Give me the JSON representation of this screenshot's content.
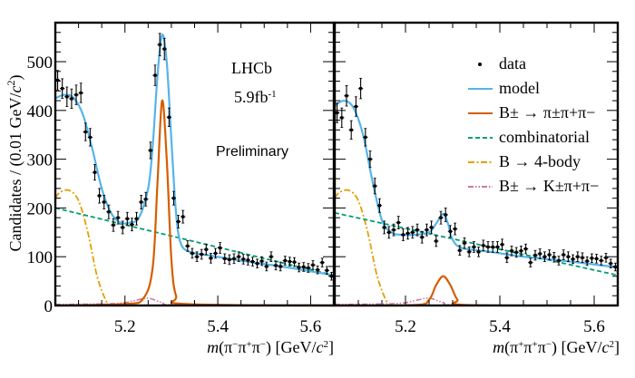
{
  "chart_data": [
    {
      "type": "scatter",
      "panel": "left",
      "xlabel": "m(π⁻π⁺π⁻) [GeV/c²]",
      "ylabel": "Candidates / (0.01 GeV/c²)",
      "xlim": [
        5.05,
        5.65
      ],
      "ylim": [
        0,
        580
      ],
      "xticks": [
        5.2,
        5.4,
        5.6
      ],
      "xtick_labels": [
        "5.2",
        "5.4",
        "5.6"
      ],
      "yticks": [
        0,
        100,
        200,
        300,
        400,
        500
      ],
      "ytick_labels": [
        "0",
        "100",
        "200",
        "300",
        "400",
        "500"
      ],
      "annotations": [
        "LHCb",
        "5.9fb",
        "-1",
        "Preliminary"
      ],
      "data": {
        "x": [
          5.055,
          5.065,
          5.075,
          5.085,
          5.095,
          5.105,
          5.115,
          5.125,
          5.135,
          5.145,
          5.155,
          5.165,
          5.175,
          5.185,
          5.195,
          5.205,
          5.215,
          5.225,
          5.235,
          5.245,
          5.255,
          5.265,
          5.275,
          5.285,
          5.295,
          5.305,
          5.315,
          5.325,
          5.335,
          5.345,
          5.355,
          5.365,
          5.375,
          5.385,
          5.395,
          5.405,
          5.415,
          5.425,
          5.435,
          5.445,
          5.455,
          5.465,
          5.475,
          5.485,
          5.495,
          5.505,
          5.515,
          5.525,
          5.535,
          5.545,
          5.555,
          5.565,
          5.575,
          5.585,
          5.595,
          5.605,
          5.615,
          5.625,
          5.635,
          5.645
        ],
        "y": [
          462,
          445,
          428,
          424,
          432,
          436,
          356,
          345,
          273,
          225,
          212,
          192,
          165,
          180,
          160,
          178,
          166,
          178,
          212,
          218,
          318,
          472,
          535,
          526,
          386,
          220,
          172,
          182,
          122,
          107,
          100,
          105,
          115,
          97,
          107,
          118,
          96,
          94,
          96,
          100,
          95,
          93,
          90,
          86,
          91,
          80,
          100,
          82,
          80,
          92,
          90,
          89,
          78,
          79,
          77,
          83,
          73,
          88,
          72,
          60
        ],
        "err": [
          20,
          20,
          20,
          20,
          20,
          20,
          18,
          18,
          16,
          15,
          14,
          14,
          13,
          13,
          13,
          13,
          13,
          13,
          14,
          14,
          17,
          21,
          23,
          22,
          19,
          14,
          13,
          13,
          11,
          10,
          10,
          10,
          11,
          10,
          10,
          11,
          10,
          10,
          10,
          10,
          10,
          10,
          9,
          9,
          9,
          9,
          10,
          9,
          9,
          9,
          9,
          9,
          9,
          9,
          9,
          9,
          8,
          9,
          8,
          8
        ]
      },
      "model": {
        "x": [
          5.05,
          5.07,
          5.09,
          5.11,
          5.13,
          5.15,
          5.17,
          5.19,
          5.21,
          5.23,
          5.25,
          5.26,
          5.27,
          5.28,
          5.29,
          5.3,
          5.31,
          5.32,
          5.34,
          5.38,
          5.45,
          5.55,
          5.65
        ],
        "y": [
          425,
          432,
          425,
          390,
          320,
          240,
          190,
          170,
          170,
          180,
          240,
          330,
          470,
          555,
          500,
          340,
          190,
          128,
          110,
          103,
          92,
          78,
          62
        ]
      },
      "signal": {
        "x": [
          5.05,
          5.2,
          5.24,
          5.26,
          5.27,
          5.28,
          5.29,
          5.3,
          5.31,
          5.33,
          5.65
        ],
        "y": [
          0,
          3,
          15,
          80,
          250,
          420,
          300,
          95,
          20,
          3,
          0
        ]
      },
      "combinatorial": {
        "x": [
          5.05,
          5.65
        ],
        "y": [
          200,
          62
        ]
      },
      "four_body": {
        "x": [
          5.05,
          5.06,
          5.08,
          5.1,
          5.12,
          5.14,
          5.16,
          5.17,
          5.2
        ],
        "y": [
          220,
          232,
          236,
          215,
          150,
          60,
          8,
          0,
          0
        ]
      },
      "kpipi": {
        "x": [
          5.05,
          5.18,
          5.22,
          5.25,
          5.28,
          5.32,
          5.65
        ],
        "y": [
          2,
          4,
          10,
          15,
          6,
          1,
          0
        ]
      }
    },
    {
      "type": "scatter",
      "panel": "right",
      "xlabel": "m(π⁺π⁺π⁻) [GeV/c²]",
      "xlim": [
        5.05,
        5.65
      ],
      "ylim": [
        0,
        580
      ],
      "xticks": [
        5.2,
        5.4,
        5.6
      ],
      "xtick_labels": [
        "5.2",
        "5.4",
        "5.6"
      ],
      "data": {
        "x": [
          5.055,
          5.065,
          5.075,
          5.085,
          5.095,
          5.105,
          5.115,
          5.125,
          5.135,
          5.145,
          5.155,
          5.165,
          5.175,
          5.185,
          5.195,
          5.205,
          5.215,
          5.225,
          5.235,
          5.245,
          5.255,
          5.265,
          5.275,
          5.285,
          5.295,
          5.305,
          5.315,
          5.325,
          5.335,
          5.345,
          5.355,
          5.365,
          5.375,
          5.385,
          5.395,
          5.405,
          5.415,
          5.425,
          5.435,
          5.445,
          5.455,
          5.465,
          5.475,
          5.485,
          5.495,
          5.505,
          5.515,
          5.525,
          5.535,
          5.545,
          5.555,
          5.565,
          5.575,
          5.585,
          5.595,
          5.605,
          5.615,
          5.625,
          5.635,
          5.645
        ],
        "y": [
          395,
          385,
          430,
          360,
          408,
          445,
          345,
          300,
          245,
          205,
          160,
          150,
          155,
          170,
          145,
          148,
          150,
          155,
          140,
          155,
          160,
          132,
          180,
          186,
          152,
          157,
          113,
          128,
          110,
          120,
          110,
          123,
          120,
          120,
          120,
          125,
          98,
          112,
          109,
          112,
          116,
          88,
          103,
          106,
          100,
          104,
          99,
          92,
          104,
          100,
          95,
          100,
          98,
          91,
          97,
          96,
          92,
          98,
          86,
          79
        ],
        "err": [
          20,
          20,
          21,
          19,
          20,
          21,
          18,
          17,
          16,
          14,
          13,
          12,
          12,
          13,
          12,
          12,
          12,
          12,
          12,
          12,
          13,
          11,
          13,
          14,
          12,
          12,
          10,
          11,
          10,
          11,
          10,
          11,
          11,
          11,
          11,
          11,
          10,
          10,
          10,
          10,
          10,
          9,
          10,
          10,
          10,
          10,
          10,
          9,
          10,
          10,
          9,
          10,
          10,
          9,
          9,
          9,
          9,
          9,
          9,
          8
        ]
      },
      "model": {
        "x": [
          5.05,
          5.07,
          5.09,
          5.11,
          5.13,
          5.15,
          5.17,
          5.19,
          5.22,
          5.25,
          5.265,
          5.28,
          5.29,
          5.3,
          5.32,
          5.38,
          5.45,
          5.55,
          5.65
        ],
        "y": [
          410,
          420,
          405,
          350,
          255,
          175,
          150,
          145,
          145,
          150,
          168,
          188,
          168,
          135,
          118,
          110,
          100,
          90,
          78
        ]
      },
      "signal": {
        "x": [
          5.05,
          5.22,
          5.25,
          5.265,
          5.28,
          5.295,
          5.31,
          5.33,
          5.65
        ],
        "y": [
          0,
          1,
          12,
          42,
          60,
          42,
          12,
          1,
          0
        ]
      },
      "combinatorial": {
        "x": [
          5.05,
          5.65
        ],
        "y": [
          190,
          62
        ]
      },
      "four_body": {
        "x": [
          5.05,
          5.06,
          5.08,
          5.1,
          5.12,
          5.14,
          5.16,
          5.17,
          5.2
        ],
        "y": [
          220,
          232,
          236,
          215,
          150,
          60,
          8,
          0,
          0
        ]
      },
      "kpipi": {
        "x": [
          5.05,
          5.18,
          5.22,
          5.25,
          5.28,
          5.32,
          5.65
        ],
        "y": [
          2,
          4,
          10,
          15,
          6,
          1,
          0
        ]
      },
      "legend": {
        "position": "top-right",
        "entries": [
          {
            "label": "data",
            "style": "marker",
            "color": "#000000"
          },
          {
            "label": "model",
            "style": "solid",
            "color": "#56b4e9"
          },
          {
            "label": "B± → π±π+π−",
            "style": "solid",
            "color": "#d55e00"
          },
          {
            "label": "combinatorial",
            "style": "dashed",
            "color": "#009e73"
          },
          {
            "label": "B → 4-body",
            "style": "dashdot",
            "color": "#e69f00"
          },
          {
            "label": "B± → K±π+π−",
            "style": "dashdotdot",
            "color": "#cc79a7"
          }
        ]
      }
    }
  ]
}
